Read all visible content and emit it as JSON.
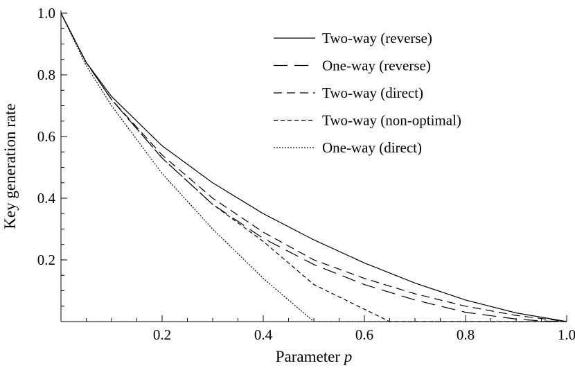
{
  "chart_data": {
    "type": "line",
    "xlabel": "Parameter",
    "xlabel_var": "p",
    "ylabel": "Key generation rate",
    "xlim": [
      0,
      1.0
    ],
    "ylim": [
      0,
      1.0
    ],
    "x_ticks": [
      0.2,
      0.4,
      0.6,
      0.8,
      1.0
    ],
    "x_tick_labels": [
      "0.2",
      "0.4",
      "0.6",
      "0.8",
      "1.0"
    ],
    "y_ticks": [
      0.2,
      0.4,
      0.6,
      0.8,
      1.0
    ],
    "y_tick_labels": [
      "0.2",
      "0.4",
      "0.6",
      "0.8",
      "1.0"
    ],
    "grid": false,
    "legend_position": "top-right",
    "series": [
      {
        "name": "Two-way (reverse)",
        "dash": "solid",
        "x": [
          0,
          0.05,
          0.1,
          0.2,
          0.3,
          0.4,
          0.5,
          0.6,
          0.7,
          0.8,
          0.9,
          1.0
        ],
        "y": [
          1.0,
          0.84,
          0.73,
          0.57,
          0.45,
          0.35,
          0.265,
          0.19,
          0.125,
          0.07,
          0.028,
          0.0
        ]
      },
      {
        "name": "One-way (reverse)",
        "dash": "longdash",
        "x": [
          0,
          0.05,
          0.1,
          0.2,
          0.3,
          0.4,
          0.5,
          0.6,
          0.7,
          0.8,
          0.9,
          0.95,
          1.0
        ],
        "y": [
          1.0,
          0.84,
          0.72,
          0.53,
          0.38,
          0.27,
          0.185,
          0.12,
          0.07,
          0.03,
          0.008,
          0.002,
          0.0
        ]
      },
      {
        "name": "Two-way (direct)",
        "dash": "dash",
        "x": [
          0,
          0.05,
          0.1,
          0.2,
          0.3,
          0.4,
          0.5,
          0.6,
          0.7,
          0.8,
          0.9,
          1.0
        ],
        "y": [
          1.0,
          0.84,
          0.72,
          0.54,
          0.4,
          0.29,
          0.2,
          0.14,
          0.09,
          0.05,
          0.02,
          0.0
        ]
      },
      {
        "name": "Two-way (non-optimal)",
        "dash": "shortdash",
        "x": [
          0,
          0.05,
          0.1,
          0.2,
          0.3,
          0.4,
          0.5,
          0.55,
          0.6,
          0.65,
          0.7,
          0.8,
          0.9,
          1.0
        ],
        "y": [
          1.0,
          0.84,
          0.72,
          0.53,
          0.38,
          0.26,
          0.12,
          0.08,
          0.04,
          0.0,
          0.0,
          0.0,
          0.0,
          0.0
        ]
      },
      {
        "name": "One-way (direct)",
        "dash": "dot",
        "x": [
          0,
          0.05,
          0.1,
          0.2,
          0.3,
          0.4,
          0.5,
          0.6,
          0.7,
          0.8,
          0.9,
          1.0
        ],
        "y": [
          1.0,
          0.83,
          0.7,
          0.48,
          0.3,
          0.14,
          0.0,
          0.0,
          0.0,
          0.0,
          0.0,
          0.0
        ]
      }
    ]
  }
}
